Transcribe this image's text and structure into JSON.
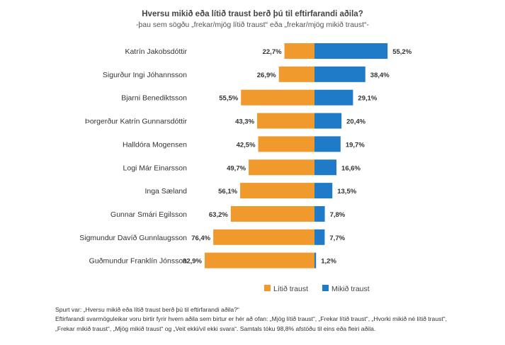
{
  "chart_data": {
    "type": "bar",
    "orientation": "horizontal-diverging",
    "title": "Hversu mikið eða lítið traust berð þú til eftirfarandi aðila?",
    "subtitle": "-þau sem sögðu „frekar/mjög lítið traust“ eða „frekar/mjög mikið traust“-",
    "categories": [
      "Katrín Jakobsdóttir",
      "Sigurður Ingi Jóhannsson",
      "Bjarni Benediktsson",
      "Þorgerður Katrín Gunnarsdóttir",
      "Halldóra Mogensen",
      "Logi Már Einarsson",
      "Inga Sæland",
      "Gunnar Smári Egilsson",
      "Sigmundur Davíð Gunnlaugsson",
      "Guðmundur Franklín Jónsson"
    ],
    "series": [
      {
        "name": "Lítið traust",
        "color": "#F0992D",
        "values": [
          22.7,
          26.9,
          55.5,
          43.3,
          42.5,
          49.7,
          56.1,
          63.2,
          76.4,
          82.9
        ],
        "labels": [
          "22,7%",
          "26,9%",
          "55,5%",
          "43,3%",
          "42,5%",
          "49,7%",
          "56,1%",
          "63,2%",
          "76,4%",
          "82,9%"
        ]
      },
      {
        "name": "Mikið traust",
        "color": "#1F7BC8",
        "values": [
          55.2,
          38.4,
          29.1,
          20.4,
          19.7,
          16.6,
          13.5,
          7.8,
          7.7,
          1.2
        ],
        "labels": [
          "55,2%",
          "38,4%",
          "29,1%",
          "20,4%",
          "19,7%",
          "16,6%",
          "13,5%",
          "7,8%",
          "7,7%",
          "1,2%"
        ]
      }
    ],
    "xlim": [
      -90,
      60
    ],
    "grid": false,
    "legend_position": "bottom-right"
  },
  "footnote": [
    "Spurt var: „Hversu mikið eða lítið traust berð þú til eftirfarandi aðila?“",
    "Eftirfarandi svarmöguleikar voru birtir fyrir hvern aðila sem birtur er hér að ofan: „Mjög lítið traust“, „Frekar lítið traust“, „Hvorki mikið né lítið traust“,",
    "„Frekar mikið traust“, „Mjög mikið traust“ og „Veit ekki/vil ekki svara“. Samtals tóku 98,8% afstöðu til eins eða fleiri aðila."
  ]
}
